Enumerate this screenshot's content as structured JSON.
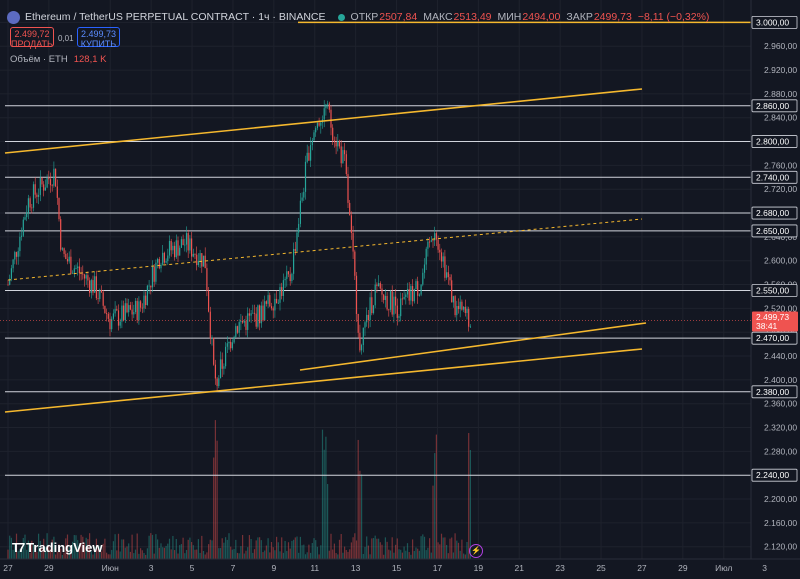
{
  "header": {
    "symbol": "Ethereum / TetherUS PERPETUAL CONTRACT · 1ч · BINANCE",
    "open_label": "ОТКР",
    "open": "2507,84",
    "high_label": "МАКС",
    "high": "2513,49",
    "low_label": "МИН",
    "low": "2494,00",
    "close_label": "ЗАКР",
    "close": "2499,73",
    "change": "−8,11 (−0,32%)"
  },
  "trade": {
    "sell_price": "2.499,72",
    "sell_label": "ПРОДАТЬ",
    "spread": "0,01",
    "buy_price": "2.499,73",
    "buy_label": "КУПИТЬ"
  },
  "volume": {
    "label": "Объём · ETH",
    "value": "128,1 K"
  },
  "logo": "TradingView",
  "last_price": {
    "value": "2.499,73",
    "countdown": "38:41"
  },
  "colors": {
    "background": "#131722",
    "up": "#26a69a",
    "down": "#ef5350",
    "trendline": "#f5b82e",
    "level": "#d1d4dc",
    "sell": "#ef5350",
    "buy": "#2962ff"
  },
  "chart_data": {
    "type": "candlestick",
    "timeframe": "1h",
    "ylim": [
      2105,
      3015
    ],
    "y_ticks": [
      3000,
      2960,
      2920,
      2880,
      2840,
      2800,
      2760,
      2720,
      2680,
      2640,
      2600,
      2560,
      2520,
      2480,
      2440,
      2400,
      2360,
      2320,
      2280,
      2240,
      2200,
      2160,
      2120
    ],
    "x_ticks": [
      "27",
      "29",
      "Июн",
      "3",
      "5",
      "7",
      "9",
      "11",
      "13",
      "15",
      "17",
      "19",
      "21",
      "23",
      "25",
      "27",
      "29",
      "Июл",
      "3"
    ],
    "levels": [
      3000,
      2860,
      2800,
      2740,
      2680,
      2650,
      2550,
      2470,
      2380,
      2240
    ],
    "level_labels": [
      "3.000,00",
      "2.860,00",
      "2.800,00",
      "2.740,00",
      "2.680,00",
      "2.650,00",
      "2.550,00",
      "2.470,00",
      "2.380,00",
      "2.240,00"
    ],
    "price_path": [
      [
        "27",
        2560
      ],
      [
        "28",
        2690
      ],
      [
        "29",
        2740
      ],
      [
        "29.5",
        2600
      ],
      [
        "30",
        2560
      ],
      [
        "Июн",
        2500
      ],
      [
        "2",
        2540
      ],
      [
        "3",
        2600
      ],
      [
        "4",
        2640
      ],
      [
        "5",
        2620
      ],
      [
        "6",
        2390
      ],
      [
        "7",
        2480
      ],
      [
        "8",
        2510
      ],
      [
        "9",
        2580
      ],
      [
        "10",
        2780
      ],
      [
        "11",
        2850
      ],
      [
        "12",
        2780
      ],
      [
        "13",
        2460
      ],
      [
        "14",
        2550
      ],
      [
        "15",
        2520
      ],
      [
        "16",
        2540
      ],
      [
        "17",
        2650
      ],
      [
        "18",
        2520
      ],
      [
        "19",
        2499.73
      ]
    ],
    "trendlines": [
      {
        "from": [
          "26",
          2780
        ],
        "to": [
          "28",
          2890
        ],
        "style": "solid"
      },
      {
        "from": [
          "27",
          2565
        ],
        "to": [
          "28",
          2673
        ],
        "style": "dashed"
      },
      {
        "from": [
          "27",
          2350
        ],
        "to": [
          "28",
          2448
        ],
        "style": "solid"
      },
      {
        "from": [
          "12",
          2436
        ],
        "to": [
          "28",
          2495
        ],
        "style": "solid"
      }
    ]
  }
}
